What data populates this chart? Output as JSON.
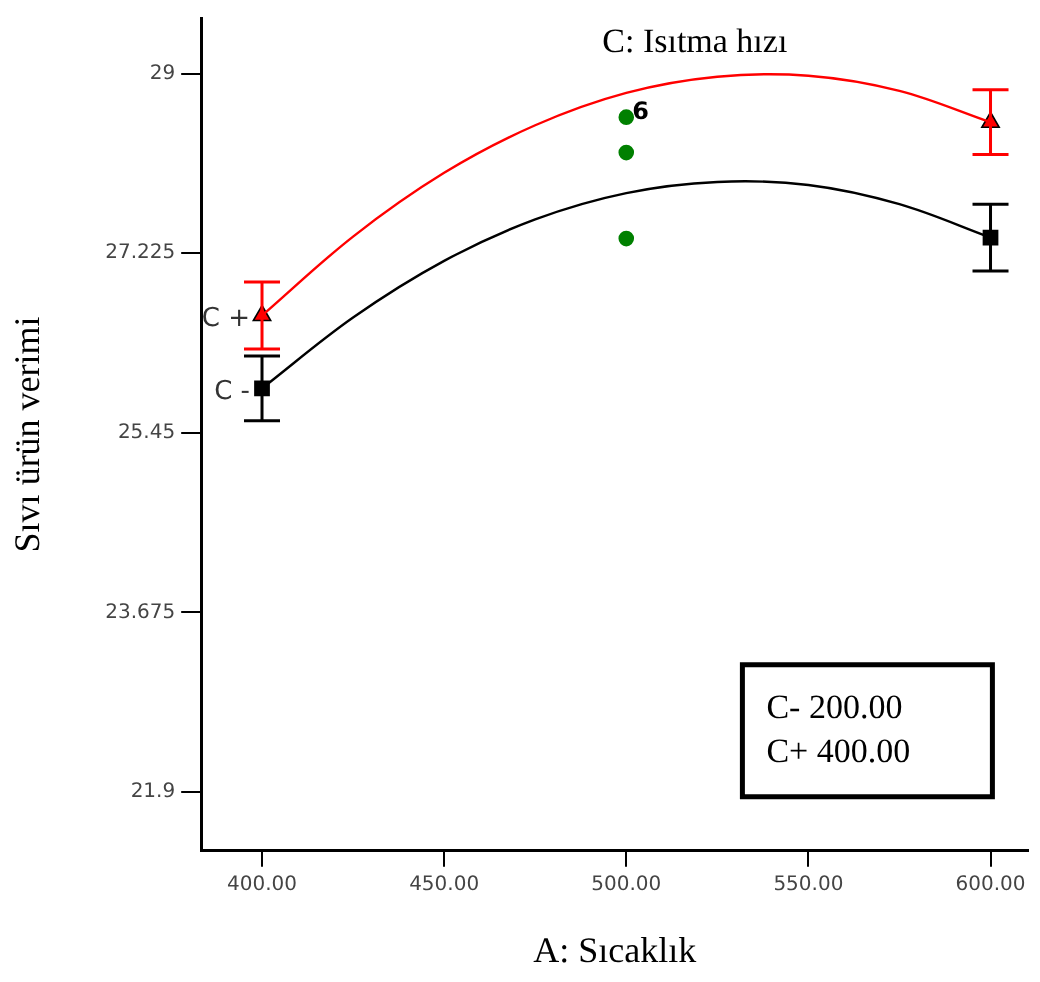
{
  "chart_data": {
    "type": "line",
    "title": "C: Isıtma hızı",
    "xlabel": "A: Sıcaklık",
    "ylabel": "Sıvı ürün verimi",
    "xlim": [
      383.3,
      610.4
    ],
    "xticks": [
      {
        "value": 400,
        "label": "400.00"
      },
      {
        "value": 450,
        "label": "450.00"
      },
      {
        "value": 500,
        "label": "500.00"
      },
      {
        "value": 550,
        "label": "550.00"
      },
      {
        "value": 600,
        "label": "600.00"
      }
    ],
    "ylim": [
      21.32,
      29.55
    ],
    "yticks": [
      21.9,
      23.675,
      25.45,
      27.225,
      29
    ],
    "grid": false,
    "legend": false,
    "annotations": [
      {
        "text": "6",
        "x": 500,
        "y": 28.57
      },
      "C- 200.00",
      "C+ 400.00"
    ],
    "series": [
      {
        "color": "#ff0000",
        "marker": "none",
        "x": [
          400,
          425,
          450,
          475,
          500,
          525,
          550,
          575,
          600
        ],
        "values": [
          26.61,
          27.39,
          28.02,
          28.49,
          28.81,
          28.97,
          28.98,
          28.83,
          28.52
        ]
      },
      {
        "color": "#000000",
        "marker": "none",
        "x": [
          400,
          425,
          450,
          475,
          500,
          525,
          550,
          575,
          600
        ],
        "values": [
          25.89,
          26.59,
          27.15,
          27.56,
          27.82,
          27.93,
          27.9,
          27.71,
          27.38
        ]
      },
      {
        "type": "scatter",
        "name": "C +",
        "color": "#ff0000",
        "marker": "triangle",
        "x": [
          400,
          600
        ],
        "values": [
          26.61,
          28.52
        ],
        "errors": [
          0.33,
          0.32
        ]
      },
      {
        "type": "scatter",
        "name": "C -",
        "color": "#000000",
        "marker": "square",
        "x": [
          400,
          600
        ],
        "values": [
          25.89,
          27.38
        ],
        "errors": [
          0.32,
          0.33
        ]
      },
      {
        "type": "scatter",
        "color": "#008000",
        "marker": "circle",
        "x": [
          500,
          500,
          500
        ],
        "values": [
          28.57,
          28.22,
          27.37
        ]
      }
    ]
  }
}
